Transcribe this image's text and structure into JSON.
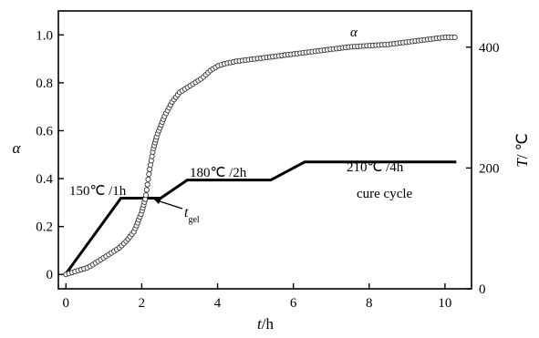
{
  "chart_data": {
    "type": "line",
    "x_axis": {
      "label_var": "t",
      "label_unit": "/h",
      "range": [
        -0.2,
        10.7
      ],
      "ticks": [
        0,
        2,
        4,
        6,
        8,
        10
      ],
      "tick_labels": [
        "0",
        "2",
        "4",
        "6",
        "8",
        "10"
      ]
    },
    "y_axis_left": {
      "label": "α",
      "range": [
        -0.06,
        1.1
      ],
      "ticks": [
        0,
        0.2,
        0.4,
        0.6,
        0.8,
        1.0
      ],
      "tick_labels": [
        "0",
        "0.2",
        "0.4",
        "0.6",
        "0.8",
        "1.0"
      ]
    },
    "y_axis_right": {
      "label_var": "T",
      "label_unit": "/ ℃",
      "range": [
        0,
        460
      ],
      "ticks": [
        0,
        200,
        400
      ],
      "tick_labels": [
        "0",
        "200",
        "400"
      ]
    },
    "series": [
      {
        "name": "α",
        "axis": "left",
        "marker": "open-circle",
        "x": [
          0,
          0.2,
          0.4,
          0.6,
          0.8,
          1.0,
          1.2,
          1.4,
          1.6,
          1.8,
          2.0,
          2.1,
          2.2,
          2.3,
          2.4,
          2.5,
          2.6,
          2.7,
          2.8,
          2.9,
          3.0,
          3.2,
          3.4,
          3.6,
          3.8,
          4.0,
          4.2,
          4.5,
          5.0,
          5.5,
          6.0,
          6.5,
          7.0,
          7.5,
          8.0,
          8.5,
          9.0,
          9.5,
          10.0,
          10.3
        ],
        "y": [
          0.0,
          0.01,
          0.02,
          0.03,
          0.05,
          0.07,
          0.09,
          0.11,
          0.14,
          0.18,
          0.26,
          0.32,
          0.43,
          0.52,
          0.58,
          0.62,
          0.66,
          0.69,
          0.72,
          0.74,
          0.76,
          0.78,
          0.8,
          0.82,
          0.85,
          0.87,
          0.88,
          0.89,
          0.9,
          0.91,
          0.92,
          0.93,
          0.94,
          0.95,
          0.955,
          0.96,
          0.97,
          0.98,
          0.99,
          0.99
        ]
      },
      {
        "name": "cure cycle",
        "axis": "right",
        "marker": "none",
        "x": [
          0,
          1.45,
          2.5,
          3.2,
          5.4,
          6.3,
          10.3
        ],
        "y": [
          25,
          150,
          150,
          180,
          180,
          210,
          210
        ]
      }
    ],
    "annotations": [
      {
        "text": "α",
        "role": "series-label"
      },
      {
        "text": "150℃ /1h"
      },
      {
        "text": "180℃ /2h"
      },
      {
        "text": "210℃ /4h"
      },
      {
        "text": "cure cycle"
      },
      {
        "text": "t",
        "subscript": "gel"
      }
    ],
    "grid": false,
    "legend": "none"
  }
}
